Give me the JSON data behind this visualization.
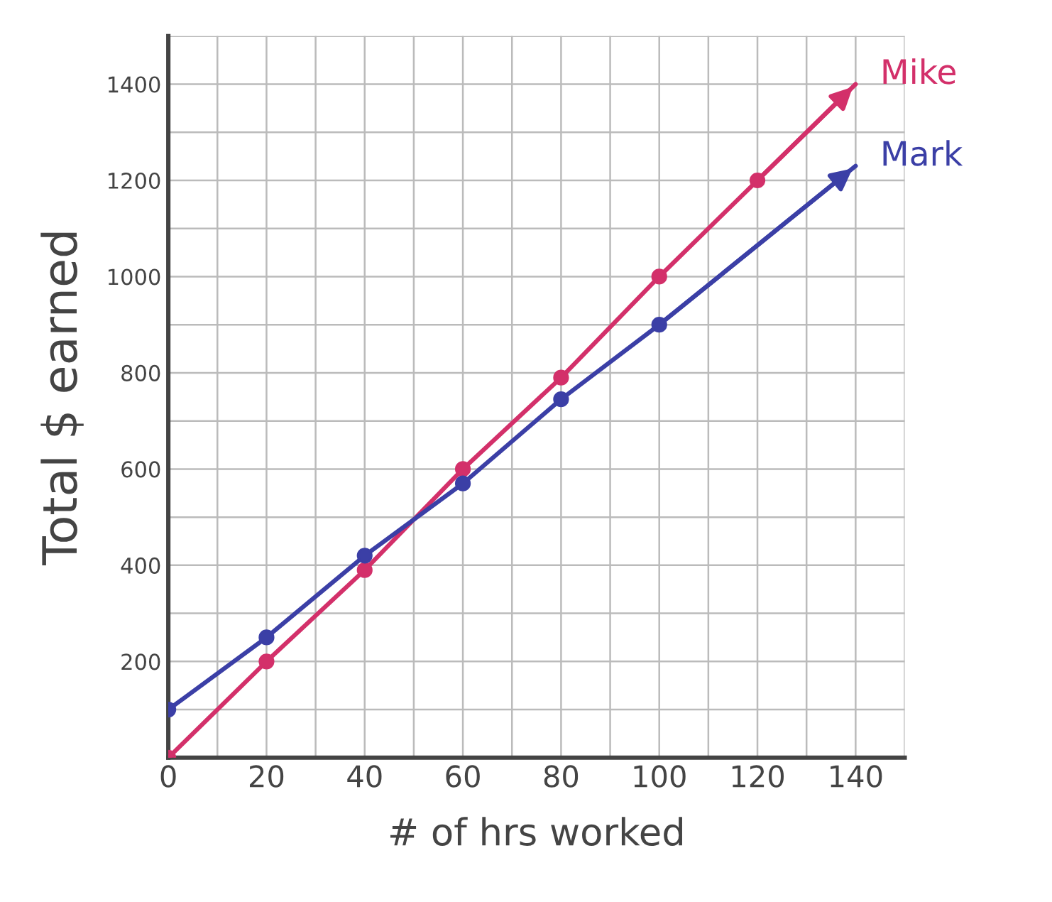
{
  "chart_data": {
    "type": "line",
    "xlabel": "# of hrs worked",
    "ylabel": "Total $ earned",
    "series": [
      {
        "name": "Mike",
        "color": "#d3306a",
        "x": [
          0,
          20,
          40,
          60,
          80,
          100,
          120,
          140
        ],
        "values": [
          0,
          200,
          390,
          600,
          790,
          1000,
          1200,
          1400
        ]
      },
      {
        "name": "Mark",
        "color": "#3b3fa6",
        "x": [
          0,
          20,
          40,
          60,
          80,
          100,
          140
        ],
        "values": [
          100,
          250,
          420,
          570,
          745,
          900,
          1230
        ]
      }
    ],
    "xlim": [
      0,
      150
    ],
    "ylim": [
      0,
      1500
    ],
    "xticks": [
      0,
      {
        "value": 10,
        "label": null
      },
      20,
      {
        "value": 30,
        "label": null
      },
      40,
      {
        "value": 50,
        "label": null
      },
      60,
      {
        "value": 70,
        "label": null
      },
      80,
      {
        "value": 90,
        "label": null
      },
      100,
      {
        "value": 110,
        "label": null
      },
      120,
      {
        "value": 130,
        "label": null
      },
      140,
      {
        "value": 150,
        "label": null
      }
    ],
    "yticks": [
      {
        "value": 0,
        "label": null
      },
      {
        "value": 100,
        "label": null
      },
      200,
      {
        "value": 300,
        "label": null
      },
      400,
      {
        "value": 500,
        "label": null
      },
      600,
      {
        "value": 700,
        "label": null
      },
      800,
      {
        "value": 900,
        "label": null
      },
      1000,
      {
        "value": 1100,
        "label": null
      },
      1200,
      {
        "value": 1300,
        "label": null
      },
      1400,
      {
        "value": 1500,
        "label": null
      }
    ],
    "grid": true,
    "legend": false,
    "marker": "circle",
    "line_style": "solid"
  }
}
